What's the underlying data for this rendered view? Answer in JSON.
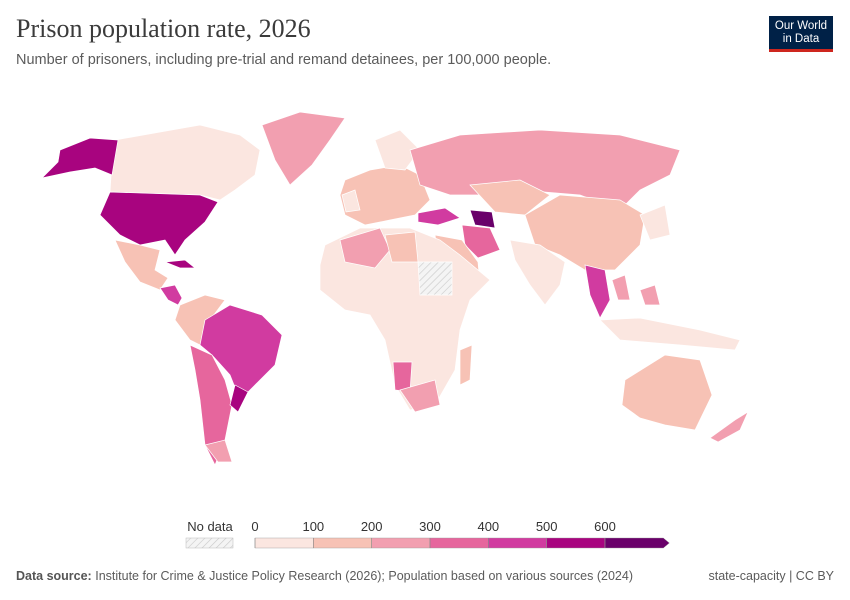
{
  "header": {
    "title": "Prison population rate, 2026",
    "subtitle": "Number of prisoners, including pre-trial and remand detainees, per 100,000 people.",
    "logo": [
      "Our World",
      "in Data"
    ]
  },
  "legend": {
    "no_data": "No data",
    "ticks": [
      0,
      100,
      200,
      300,
      400,
      500,
      600
    ],
    "colors": [
      "#fbe6e0",
      "#f7c2b5",
      "#f29fb0",
      "#e6669d",
      "#d13ba0",
      "#a8047f",
      "#6a006a"
    ]
  },
  "footer": {
    "source_label": "Data source:",
    "source": "Institute for Crime & Justice Policy Research (2026); Population based on various sources (2024)",
    "license": "state-capacity | CC BY"
  }
}
